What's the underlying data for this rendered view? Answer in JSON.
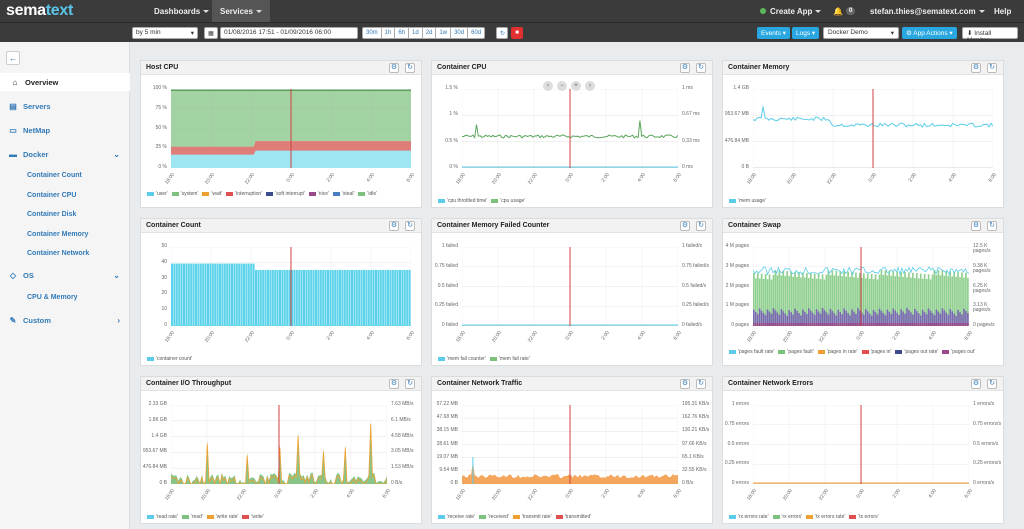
{
  "topnav": {
    "logo_prefix": "sema",
    "logo_suffix": "text",
    "menus": [
      "Dashboards",
      "Services"
    ],
    "create_app": "Create App",
    "notification_count": "0",
    "user": "stefan.thies@sematext.com",
    "help": "Help"
  },
  "toolbar": {
    "interval": "by 5 min",
    "date_range": "01/08/2016 17:51 - 01/09/2016 06:00",
    "ranges": [
      "30m",
      "1h",
      "6h",
      "1d",
      "2d",
      "1w",
      "30d",
      "60d"
    ],
    "events": "Events",
    "logs": "Logs",
    "app_select": "Docker Demo",
    "app_actions": "App Actions",
    "install_monitor": "Install Monitor"
  },
  "sidebar": {
    "items": [
      {
        "label": "Overview",
        "icon": "home-icon"
      },
      {
        "label": "Servers",
        "icon": "server-icon"
      },
      {
        "label": "NetMap",
        "icon": "map-icon"
      },
      {
        "label": "Docker",
        "icon": "docker-icon"
      },
      {
        "label": "OS",
        "icon": "os-icon"
      },
      {
        "label": "Custom",
        "icon": "wrench-icon"
      }
    ],
    "docker_sub": [
      "Container Count",
      "Container CPU",
      "Container Disk",
      "Container Memory",
      "Container Network"
    ],
    "os_sub": [
      "CPU & Memory"
    ]
  },
  "colors": {
    "cyan": "#5bcde8",
    "green": "#7cc17c",
    "orange": "#f0a030",
    "red": "#e05050",
    "navy": "#3a4c8c",
    "purple": "#9a4a8a",
    "blue": "#4a7ec0",
    "marker": "#d04040"
  },
  "x_ticks": [
    "18:00",
    "20:00",
    "22:00",
    "0:00",
    "2:00",
    "4:00",
    "6:00"
  ],
  "panels": [
    {
      "title": "Host CPU",
      "yticks": [
        "100 %",
        "75 %",
        "50 %",
        "25 %",
        "0 %"
      ],
      "yticks_r": [],
      "legend": [
        "'user'",
        "'system'",
        "'wait'",
        "'interruption'",
        "'soft interrupt'",
        "'nice'",
        "'steal'",
        "'idle'"
      ]
    },
    {
      "title": "Container CPU",
      "yticks": [
        "1.5 %",
        "1 %",
        "0.5 %",
        "0 %"
      ],
      "yticks_r": [
        "1 ms",
        "0.67 ms",
        "0.33 ms",
        "0 ms"
      ],
      "legend": [
        "'cpu throttled time'",
        "'cpu usage'"
      ]
    },
    {
      "title": "Container Memory",
      "yticks": [
        "1.4 GB",
        "953.67 MB",
        "476.84 MB",
        "0 B"
      ],
      "yticks_r": [],
      "legend": [
        "'mem usage'"
      ]
    },
    {
      "title": "Container Count",
      "yticks": [
        "50",
        "40",
        "30",
        "20",
        "10",
        "0"
      ],
      "yticks_r": [],
      "legend": [
        "'container count'"
      ]
    },
    {
      "title": "Container Memory Failed Counter",
      "yticks": [
        "1 failed",
        "0.75 failed",
        "0.5 failed",
        "0.25 failed",
        "0 failed"
      ],
      "yticks_r": [
        "1 failed/s",
        "0.75 failed/s",
        "0.5 failed/s",
        "0.25 failed/s",
        "0 failed/s"
      ],
      "legend": [
        "'mem fail counter'",
        "'mem fail rate'"
      ]
    },
    {
      "title": "Container Swap",
      "yticks": [
        "4 M pages",
        "3 M pages",
        "2 M pages",
        "1 M pages",
        "0 pages"
      ],
      "yticks_r": [
        "12.5 K pages/s",
        "9.38 K pages/s",
        "6.25 K pages/s",
        "3.13 K pages/s",
        "0 pages/s"
      ],
      "legend": [
        "'pages fault rate'",
        "'pages fault'",
        "'pages in rate'",
        "'pages in'",
        "'pages out rate'",
        "'pages out'"
      ]
    },
    {
      "title": "Container I/O Throughput",
      "yticks": [
        "2.33 GB",
        "1.86 GB",
        "1.4 GB",
        "953.67 MB",
        "476.84 MB",
        "0 B"
      ],
      "yticks_r": [
        "7.63 MB/s",
        "6.1 MB/s",
        "4.58 MB/s",
        "3.05 MB/s",
        "1.53 MB/s",
        "0 B/s"
      ],
      "legend": [
        "'read rate'",
        "'read'",
        "'write rate'",
        "'write'"
      ]
    },
    {
      "title": "Container Network Traffic",
      "yticks": [
        "57.22 MB",
        "47.68 MB",
        "38.15 MB",
        "28.61 MB",
        "19.07 MB",
        "9.54 MB",
        "0 B"
      ],
      "yticks_r": [
        "195.31 KB/s",
        "162.76 KB/s",
        "130.21 KB/s",
        "97.66 KB/s",
        "65.1 KB/s",
        "32.55 KB/s",
        "0 B/s"
      ],
      "legend": [
        "'receive rate'",
        "'received'",
        "'transmit rate'",
        "'transmitted'"
      ]
    },
    {
      "title": "Container Network Errors",
      "yticks": [
        "1 errors",
        "0.75 errors",
        "0.5 errors",
        "0.25 errors",
        "0 errors"
      ],
      "yticks_r": [
        "1 errors/s",
        "0.75 errors/s",
        "0.5 errors/s",
        "0.25 errors/s",
        "0 errors/s"
      ],
      "legend": [
        "'rx errors rate'",
        "'rx errors'",
        "'tx errors rate'",
        "'tx errors'"
      ]
    }
  ]
}
